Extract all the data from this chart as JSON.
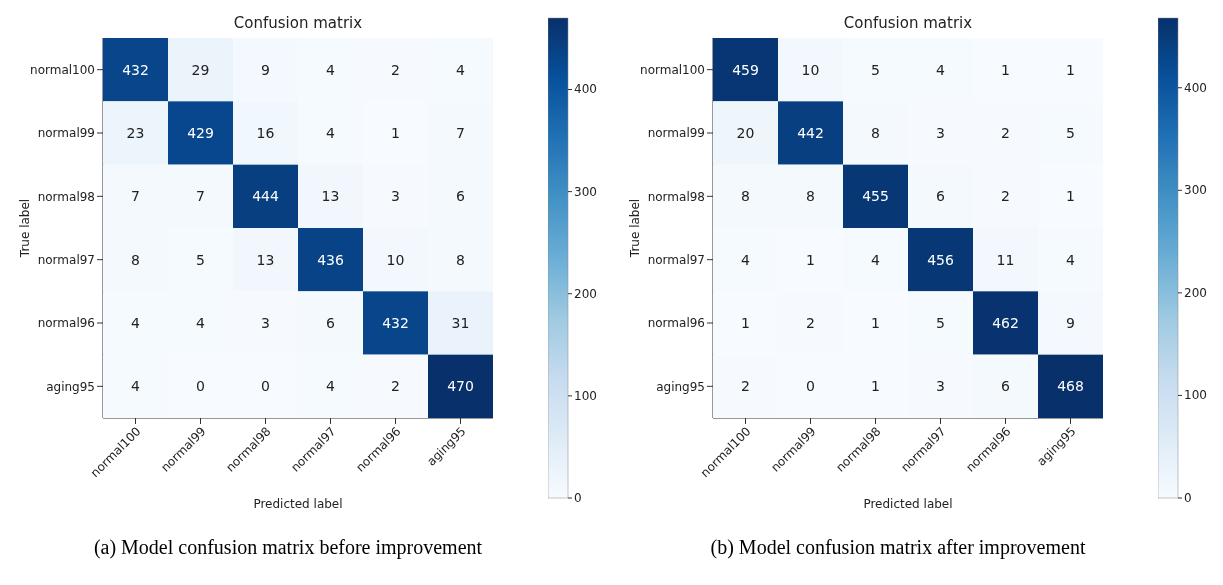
{
  "chart_data": [
    {
      "type": "heatmap",
      "title": "Confusion matrix",
      "xlabel": "Predicted label",
      "ylabel": "True label",
      "categories": [
        "normal100",
        "normal99",
        "normal98",
        "normal97",
        "normal96",
        "aging95"
      ],
      "y_categories": [
        "normal100",
        "normal99",
        "normal98",
        "normal97",
        "normal96",
        "aging95"
      ],
      "cells": [
        [
          432,
          29,
          9,
          4,
          2,
          4
        ],
        [
          23,
          429,
          16,
          4,
          1,
          7
        ],
        [
          7,
          7,
          444,
          13,
          3,
          6
        ],
        [
          8,
          5,
          13,
          436,
          10,
          8
        ],
        [
          4,
          4,
          3,
          6,
          432,
          31
        ],
        [
          4,
          0,
          0,
          4,
          2,
          470
        ]
      ],
      "data_labels": true,
      "clim": [
        0,
        470
      ],
      "cticks": [
        0,
        100,
        200,
        300,
        400
      ],
      "annotations": [
        "(a) Model confusion matrix before improvement"
      ]
    },
    {
      "type": "heatmap",
      "title": "Confusion matrix",
      "xlabel": "Predicted label",
      "ylabel": "True label",
      "categories": [
        "normal100",
        "normal99",
        "normal98",
        "normal97",
        "normal96",
        "aging95"
      ],
      "y_categories": [
        "normal100",
        "normal99",
        "normal98",
        "normal97",
        "normal96",
        "aging95"
      ],
      "cells": [
        [
          459,
          10,
          5,
          4,
          1,
          1
        ],
        [
          20,
          442,
          8,
          3,
          2,
          5
        ],
        [
          8,
          8,
          455,
          6,
          2,
          1
        ],
        [
          4,
          1,
          4,
          456,
          11,
          4
        ],
        [
          1,
          2,
          1,
          5,
          462,
          9
        ],
        [
          2,
          0,
          1,
          3,
          6,
          468
        ]
      ],
      "data_labels": true,
      "clim": [
        0,
        468
      ],
      "cticks": [
        0,
        100,
        200,
        300,
        400
      ],
      "annotations": [
        "(b) Model confusion matrix after improvement"
      ]
    }
  ]
}
